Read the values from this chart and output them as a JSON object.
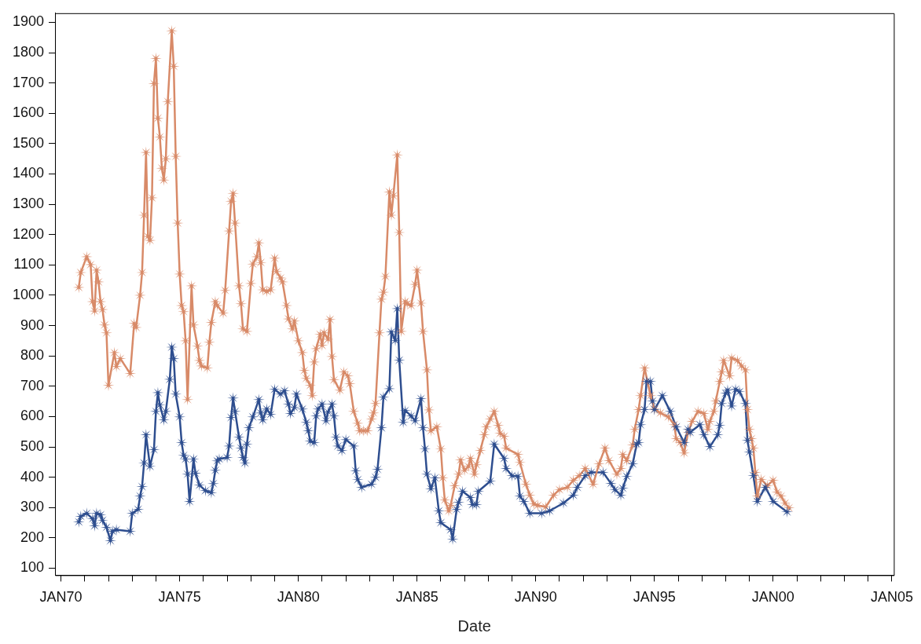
{
  "chart_data": {
    "type": "line",
    "xlabel": "Date",
    "marker": "star",
    "line_style": "solid",
    "grid": false,
    "legend": false,
    "xlim": [
      "1969-10",
      "2005-02"
    ],
    "ylim": [
      77,
      1930
    ],
    "xticks": [
      {
        "value": "1970-01",
        "label": "JAN70"
      },
      {
        "value": "1971-01",
        "label": null
      },
      {
        "value": "1972-01",
        "label": null
      },
      {
        "value": "1973-01",
        "label": null
      },
      {
        "value": "1974-01",
        "label": null
      },
      {
        "value": "1975-01",
        "label": "JAN75"
      },
      {
        "value": "1976-01",
        "label": null
      },
      {
        "value": "1977-01",
        "label": null
      },
      {
        "value": "1978-01",
        "label": null
      },
      {
        "value": "1979-01",
        "label": null
      },
      {
        "value": "1980-01",
        "label": "JAN80"
      },
      {
        "value": "1981-01",
        "label": null
      },
      {
        "value": "1982-01",
        "label": null
      },
      {
        "value": "1983-01",
        "label": null
      },
      {
        "value": "1984-01",
        "label": null
      },
      {
        "value": "1985-01",
        "label": "JAN85"
      },
      {
        "value": "1986-01",
        "label": null
      },
      {
        "value": "1987-01",
        "label": null
      },
      {
        "value": "1988-01",
        "label": null
      },
      {
        "value": "1989-01",
        "label": null
      },
      {
        "value": "1990-01",
        "label": "JAN90"
      },
      {
        "value": "1991-01",
        "label": null
      },
      {
        "value": "1992-01",
        "label": null
      },
      {
        "value": "1993-01",
        "label": null
      },
      {
        "value": "1994-01",
        "label": null
      },
      {
        "value": "1995-01",
        "label": "JAN95"
      },
      {
        "value": "1996-01",
        "label": null
      },
      {
        "value": "1997-01",
        "label": null
      },
      {
        "value": "1998-01",
        "label": null
      },
      {
        "value": "1999-01",
        "label": null
      },
      {
        "value": "2000-01",
        "label": "JAN00"
      },
      {
        "value": "2001-01",
        "label": null
      },
      {
        "value": "2002-01",
        "label": null
      },
      {
        "value": "2003-01",
        "label": null
      },
      {
        "value": "2004-01",
        "label": null
      },
      {
        "value": "2005-01",
        "label": "JAN05"
      }
    ],
    "yticks": [
      100,
      200,
      300,
      400,
      500,
      600,
      700,
      800,
      900,
      1000,
      1100,
      1200,
      1300,
      1400,
      1500,
      1600,
      1700,
      1800,
      1900
    ],
    "series": [
      {
        "color": "#d88a68",
        "x": [
          "1970-10",
          "1970-11",
          "1971-02",
          "1971-04",
          "1971-05",
          "1971-06",
          "1971-07",
          "1971-08",
          "1971-09",
          "1971-10",
          "1971-11",
          "1971-12",
          "1972-01",
          "1972-04",
          "1972-05",
          "1972-07",
          "1972-12",
          "1973-02",
          "1973-03",
          "1973-05",
          "1973-06",
          "1973-07",
          "1973-08",
          "1973-09",
          "1973-10",
          "1973-11",
          "1973-12",
          "1974-01",
          "1974-02",
          "1974-03",
          "1974-04",
          "1974-05",
          "1974-06",
          "1974-07",
          "1974-09",
          "1974-10",
          "1974-11",
          "1974-12",
          "1975-01",
          "1975-02",
          "1975-03",
          "1975-04",
          "1975-05",
          "1975-07",
          "1975-08",
          "1975-10",
          "1975-11",
          "1975-12",
          "1976-03",
          "1976-04",
          "1976-05",
          "1976-07",
          "1976-08",
          "1976-11",
          "1976-12",
          "1977-02",
          "1977-03",
          "1977-04",
          "1977-05",
          "1977-07",
          "1977-08",
          "1977-09",
          "1977-11",
          "1978-01",
          "1978-02",
          "1978-04",
          "1978-05",
          "1978-06",
          "1978-07",
          "1978-09",
          "1978-11",
          "1979-01",
          "1979-02",
          "1979-04",
          "1979-05",
          "1979-07",
          "1979-08",
          "1979-10",
          "1979-11",
          "1980-01",
          "1980-03",
          "1980-04",
          "1980-05",
          "1980-07",
          "1980-08",
          "1980-09",
          "1980-10",
          "1980-12",
          "1981-01",
          "1981-02",
          "1981-04",
          "1981-05",
          "1981-06",
          "1981-07",
          "1981-10",
          "1981-12",
          "1982-02",
          "1982-03",
          "1982-05",
          "1982-07",
          "1982-08",
          "1982-10",
          "1982-12",
          "1983-02",
          "1983-03",
          "1983-04",
          "1983-06",
          "1983-07",
          "1983-08",
          "1983-09",
          "1983-11",
          "1983-12",
          "1984-01",
          "1984-03",
          "1984-04",
          "1984-05",
          "1984-07",
          "1984-08",
          "1984-10",
          "1984-12",
          "1985-01",
          "1985-03",
          "1985-04",
          "1985-06",
          "1985-07",
          "1985-08",
          "1985-11",
          "1986-01",
          "1986-02",
          "1986-03",
          "1986-05",
          "1986-06",
          "1986-08",
          "1986-10",
          "1986-11",
          "1987-01",
          "1987-03",
          "1987-04",
          "1987-06",
          "1987-07",
          "1987-09",
          "1987-11",
          "1987-12",
          "1988-02",
          "1988-04",
          "1988-06",
          "1988-07",
          "1988-09",
          "1988-10",
          "1989-04",
          "1989-05",
          "1989-08",
          "1989-10",
          "1989-12",
          "1990-02",
          "1990-06",
          "1990-10",
          "1991-01",
          "1991-05",
          "1991-08",
          "1991-11",
          "1992-02",
          "1992-06",
          "1992-09",
          "1992-12",
          "1993-02",
          "1993-06",
          "1993-08",
          "1993-09",
          "1993-11",
          "1994-02",
          "1994-03",
          "1994-05",
          "1994-06",
          "1994-08",
          "1994-11",
          "1995-01",
          "1995-04",
          "1995-08",
          "1995-11",
          "1995-12",
          "1996-02",
          "1996-04",
          "1996-06",
          "1996-08",
          "1996-11",
          "1997-02",
          "1997-04",
          "1997-05",
          "1997-07",
          "1997-08",
          "1997-10",
          "1997-11",
          "1997-12",
          "1998-03",
          "1998-04",
          "1998-07",
          "1998-09",
          "1998-11",
          "1998-12",
          "1999-01",
          "1999-02",
          "1999-03",
          "1999-04",
          "1999-05",
          "1999-07",
          "1999-10",
          "2000-01",
          "2000-03",
          "2000-05",
          "2000-07",
          "2000-09"
        ],
        "values": [
          1026,
          1075,
          1127,
          1101,
          979,
          948,
          1083,
          1044,
          979,
          953,
          902,
          876,
          703,
          811,
          765,
          791,
          742,
          907,
          894,
          1000,
          1075,
          1264,
          1471,
          1194,
          1181,
          1321,
          1698,
          1781,
          1584,
          1522,
          1419,
          1380,
          1450,
          1639,
          1872,
          1755,
          1458,
          1238,
          1070,
          966,
          946,
          850,
          656,
          1031,
          902,
          832,
          785,
          767,
          760,
          845,
          910,
          979,
          966,
          941,
          1016,
          1212,
          1310,
          1336,
          1238,
          1031,
          972,
          889,
          881,
          1039,
          1103,
          1127,
          1173,
          1108,
          1018,
          1013,
          1018,
          1122,
          1078,
          1057,
          1044,
          966,
          922,
          889,
          915,
          850,
          811,
          752,
          726,
          703,
          669,
          780,
          824,
          871,
          835,
          876,
          855,
          920,
          798,
          721,
          687,
          747,
          734,
          708,
          617,
          578,
          553,
          553,
          553,
          592,
          612,
          643,
          876,
          987,
          1010,
          1062,
          1341,
          1264,
          1328,
          1463,
          1207,
          881,
          979,
          972,
          966,
          1036,
          1083,
          974,
          881,
          754,
          622,
          553,
          566,
          493,
          398,
          325,
          289,
          307,
          372,
          410,
          457,
          423,
          436,
          462,
          410,
          441,
          488,
          540,
          566,
          592,
          617,
          571,
          545,
          535,
          496,
          475,
          449,
          377,
          341,
          312,
          307,
          302,
          341,
          359,
          367,
          390,
          405,
          429,
          377,
          444,
          496,
          455,
          410,
          429,
          475,
          455,
          506,
          558,
          623,
          669,
          760,
          669,
          625,
          612,
          599,
          573,
          527,
          514,
          480,
          548,
          584,
          617,
          610,
          558,
          584,
          617,
          651,
          716,
          747,
          785,
          734,
          793,
          785,
          767,
          754,
          623,
          558,
          527,
          496,
          416,
          338,
          393,
          372,
          390,
          351,
          338,
          315,
          299
        ]
      },
      {
        "color": "#2e4e8f",
        "x": [
          "1970-10",
          "1970-11",
          "1971-02",
          "1971-05",
          "1971-06",
          "1971-07",
          "1971-09",
          "1971-10",
          "1971-12",
          "1972-02",
          "1972-03",
          "1972-05",
          "1972-12",
          "1973-01",
          "1973-04",
          "1973-05",
          "1973-06",
          "1973-07",
          "1973-08",
          "1973-10",
          "1973-12",
          "1974-01",
          "1974-02",
          "1974-03",
          "1974-05",
          "1974-06",
          "1974-08",
          "1974-09",
          "1974-10",
          "1974-11",
          "1975-01",
          "1975-02",
          "1975-03",
          "1975-04",
          "1975-05",
          "1975-06",
          "1975-08",
          "1975-09",
          "1975-11",
          "1976-02",
          "1976-05",
          "1976-06",
          "1976-07",
          "1976-08",
          "1976-09",
          "1977-01",
          "1977-02",
          "1977-03",
          "1977-04",
          "1977-05",
          "1977-07",
          "1977-08",
          "1977-09",
          "1977-10",
          "1977-11",
          "1977-12",
          "1978-02",
          "1978-05",
          "1978-06",
          "1978-07",
          "1978-09",
          "1978-11",
          "1979-01",
          "1979-04",
          "1979-06",
          "1979-08",
          "1979-09",
          "1979-11",
          "1979-12",
          "1980-03",
          "1980-05",
          "1980-06",
          "1980-07",
          "1980-09",
          "1980-10",
          "1980-11",
          "1981-01",
          "1981-03",
          "1981-04",
          "1981-06",
          "1981-07",
          "1981-08",
          "1981-09",
          "1981-11",
          "1982-01",
          "1982-05",
          "1982-06",
          "1982-07",
          "1982-09",
          "1983-02",
          "1983-04",
          "1983-05",
          "1983-07",
          "1983-08",
          "1983-11",
          "1983-12",
          "1984-02",
          "1984-03",
          "1984-04",
          "1984-06",
          "1984-07",
          "1984-10",
          "1984-12",
          "1985-03",
          "1985-04",
          "1985-05",
          "1985-06",
          "1985-08",
          "1985-10",
          "1985-12",
          "1986-01",
          "1986-06",
          "1986-07",
          "1986-09",
          "1986-10",
          "1986-12",
          "1987-04",
          "1987-05",
          "1987-07",
          "1987-08",
          "1988-02",
          "1988-04",
          "1988-09",
          "1988-10",
          "1989-01",
          "1989-04",
          "1989-05",
          "1989-07",
          "1989-10",
          "1990-04",
          "1990-08",
          "1991-03",
          "1991-08",
          "1991-10",
          "1992-02",
          "1992-05",
          "1992-11",
          "1993-03",
          "1993-05",
          "1993-08",
          "1993-09",
          "1993-11",
          "1994-02",
          "1994-04",
          "1994-05",
          "1994-06",
          "1994-08",
          "1994-09",
          "1994-11",
          "1994-12",
          "1995-01",
          "1995-05",
          "1995-09",
          "1995-12",
          "1996-04",
          "1996-06",
          "1996-07",
          "1996-12",
          "1997-02",
          "1997-05",
          "1997-09",
          "1997-10",
          "1997-11",
          "1998-01",
          "1998-02",
          "1998-04",
          "1998-06",
          "1998-08",
          "1998-11",
          "1998-12",
          "1999-01",
          "1999-03",
          "1999-05",
          "1999-09",
          "2000-01",
          "2000-08"
        ],
        "values": [
          253,
          271,
          281,
          263,
          240,
          281,
          276,
          258,
          235,
          191,
          222,
          227,
          222,
          281,
          294,
          338,
          369,
          447,
          540,
          436,
          491,
          617,
          679,
          638,
          589,
          617,
          723,
          829,
          791,
          674,
          599,
          514,
          472,
          460,
          410,
          320,
          460,
          413,
          374,
          356,
          349,
          379,
          423,
          454,
          460,
          465,
          503,
          597,
          661,
          617,
          532,
          496,
          465,
          447,
          509,
          563,
          599,
          656,
          612,
          589,
          625,
          607,
          690,
          674,
          685,
          641,
          610,
          630,
          674,
          625,
          581,
          553,
          519,
          514,
          602,
          625,
          641,
          586,
          615,
          641,
          602,
          532,
          503,
          488,
          524,
          503,
          421,
          392,
          367,
          377,
          400,
          426,
          563,
          664,
          692,
          879,
          851,
          956,
          786,
          581,
          620,
          602,
          586,
          659,
          563,
          493,
          410,
          362,
          398,
          289,
          250,
          227,
          196,
          294,
          317,
          354,
          333,
          310,
          310,
          354,
          387,
          509,
          462,
          429,
          405,
          403,
          338,
          320,
          281,
          281,
          289,
          315,
          341,
          367,
          405,
          416,
          416,
          380,
          359,
          341,
          364,
          403,
          444,
          509,
          514,
          573,
          623,
          716,
          716,
          651,
          623,
          669,
          617,
          566,
          514,
          558,
          548,
          573,
          540,
          501,
          540,
          571,
          643,
          677,
          687,
          635,
          690,
          682,
          643,
          522,
          483,
          405,
          320,
          367,
          320,
          286
        ]
      }
    ]
  }
}
